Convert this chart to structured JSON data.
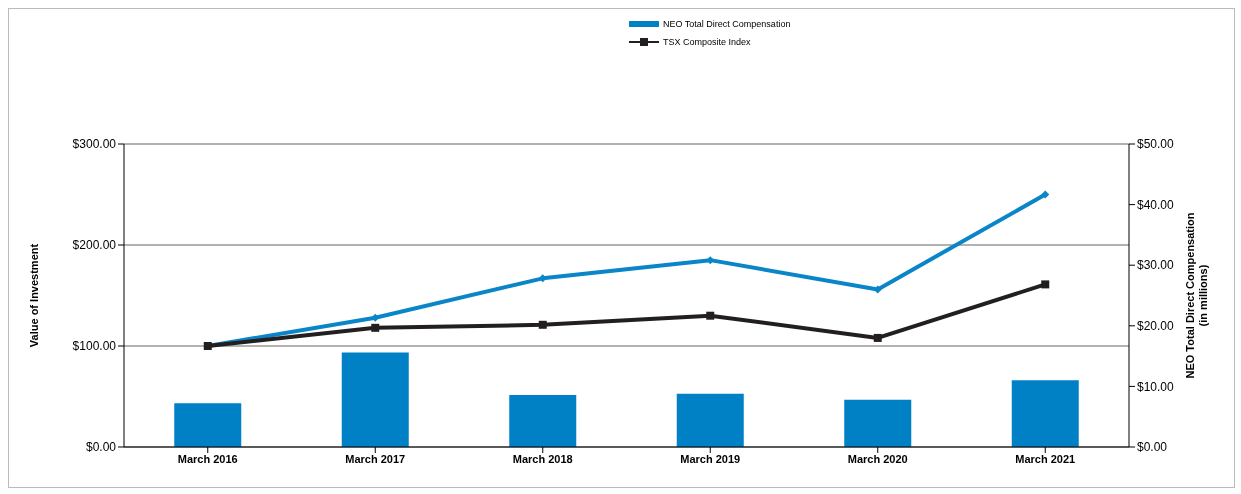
{
  "chart_data": {
    "type": "bar",
    "categories": [
      "March 2016",
      "March 2017",
      "March 2018",
      "March 2019",
      "March 2020",
      "March 2021"
    ],
    "series": [
      {
        "name": "NEO Total Direct Compensation",
        "axis": "y2",
        "color": "#0081c6",
        "values": [
          7.2,
          15.6,
          8.6,
          8.8,
          7.8,
          11.0
        ]
      },
      {
        "type": "line",
        "color": "#0a86c8",
        "marker": "diamond",
        "values": [
          100,
          128,
          167,
          185,
          156,
          250
        ]
      },
      {
        "name": "TSX Composite Index",
        "type": "line",
        "color": "#231f20",
        "marker": "square",
        "values": [
          100,
          118,
          121,
          130,
          108,
          161
        ]
      }
    ],
    "ylabel": "Value of Investment",
    "y2label": "NEO Total Direct Compensation (in millions)",
    "ylim": [
      0,
      300
    ],
    "yticks": [
      {
        "value": 0,
        "label": "$0.00"
      },
      {
        "value": 100,
        "label": "$100.00"
      },
      {
        "value": 200,
        "label": "$200.00"
      },
      {
        "value": 300,
        "label": "$300.00"
      }
    ],
    "y2lim": [
      0,
      50
    ],
    "y2ticks": [
      {
        "value": 0,
        "label": "$0.00"
      },
      {
        "value": 10,
        "label": "$10.00"
      },
      {
        "value": 20,
        "label": "$20.00"
      },
      {
        "value": 30,
        "label": "$30.00"
      },
      {
        "value": 40,
        "label": "$40.00"
      },
      {
        "value": 50,
        "label": "$50.00"
      }
    ],
    "grid": "y",
    "legend": "top"
  }
}
